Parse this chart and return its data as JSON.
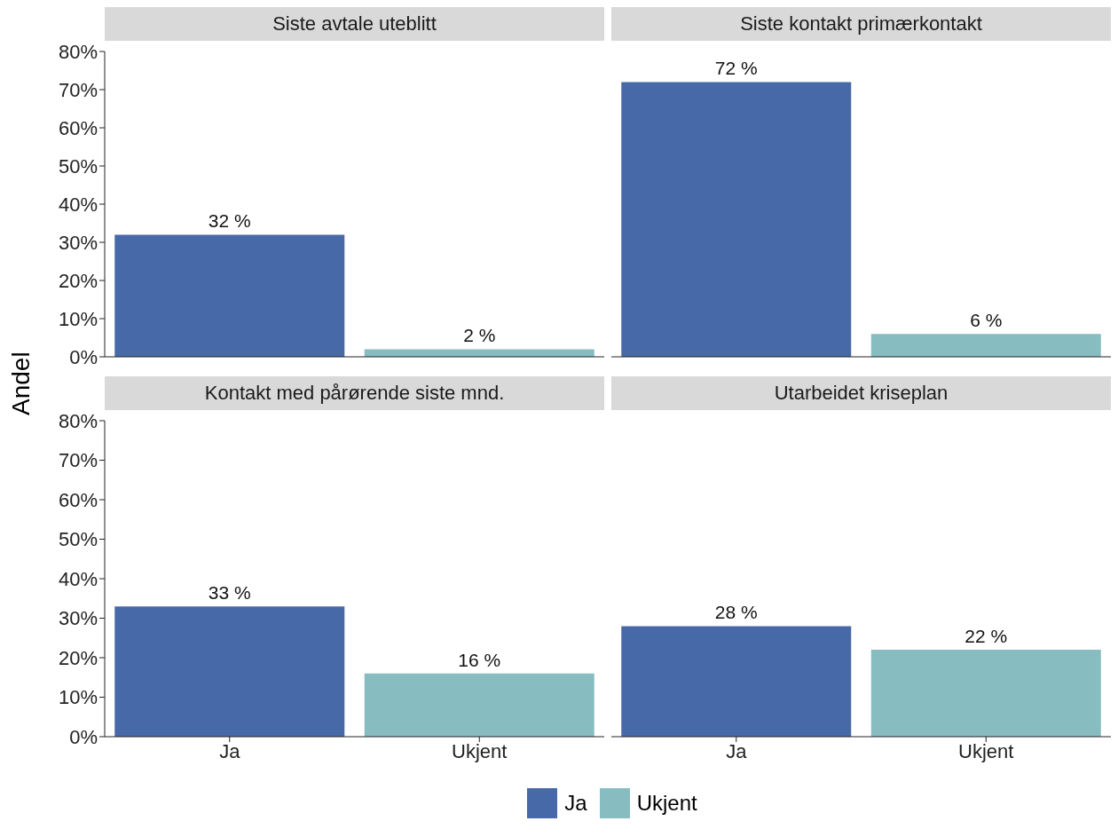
{
  "chart_data": [
    {
      "type": "bar",
      "stacked": true,
      "title": "Siste avtale uteblitt",
      "ylabel": "Andel",
      "categories": [
        "Ja",
        "Ukjent"
      ],
      "series": [
        {
          "name": "Ja",
          "color": "#4869a8",
          "values": [
            32,
            null
          ],
          "value_labels": [
            "32 %",
            null
          ]
        },
        {
          "name": "Ukjent",
          "color": "#87bcc1",
          "values": [
            null,
            2
          ],
          "value_labels": [
            null,
            "2 %"
          ]
        }
      ],
      "ylim": [
        0,
        80
      ],
      "yticks": [
        {
          "value": 0,
          "label": "0%"
        },
        {
          "value": 10,
          "label": "10%"
        },
        {
          "value": 20,
          "label": "20%"
        },
        {
          "value": 30,
          "label": "30%"
        },
        {
          "value": 40,
          "label": "40%"
        },
        {
          "value": 50,
          "label": "50%"
        },
        {
          "value": 60,
          "label": "60%"
        },
        {
          "value": 70,
          "label": "70%"
        },
        {
          "value": 80,
          "label": "80%"
        }
      ],
      "tick_labels": "y",
      "grid": false,
      "legend": "bottom"
    },
    {
      "type": "bar",
      "stacked": true,
      "title": "Siste kontakt primærkontakt",
      "categories": [
        "Ja",
        "Ukjent"
      ],
      "series": [
        {
          "name": "Ja",
          "color": "#4869a8",
          "values": [
            72,
            null
          ],
          "value_labels": [
            "72 %",
            null
          ]
        },
        {
          "name": "Ukjent",
          "color": "#87bcc1",
          "values": [
            null,
            6
          ],
          "value_labels": [
            null,
            "6 %"
          ]
        }
      ],
      "ylim": [
        0,
        80
      ],
      "yticks": [
        {
          "value": 0,
          "label": "0%"
        },
        {
          "value": 10,
          "label": "10%"
        },
        {
          "value": 20,
          "label": "20%"
        },
        {
          "value": 30,
          "label": "30%"
        },
        {
          "value": 40,
          "label": "40%"
        },
        {
          "value": 50,
          "label": "50%"
        },
        {
          "value": 60,
          "label": "60%"
        },
        {
          "value": 70,
          "label": "70%"
        },
        {
          "value": 80,
          "label": "80%"
        }
      ],
      "tick_labels": false,
      "grid": false
    },
    {
      "type": "bar",
      "stacked": true,
      "title": "Kontakt med pårørende siste mnd.",
      "categories": [
        "Ja",
        "Ukjent"
      ],
      "series": [
        {
          "name": "Ja",
          "color": "#4869a8",
          "values": [
            33,
            null
          ],
          "value_labels": [
            "33 %",
            null
          ]
        },
        {
          "name": "Ukjent",
          "color": "#87bcc1",
          "values": [
            null,
            16
          ],
          "value_labels": [
            null,
            "16 %"
          ]
        }
      ],
      "ylim": [
        0,
        80
      ],
      "yticks": [
        {
          "value": 0,
          "label": "0%"
        },
        {
          "value": 10,
          "label": "10%"
        },
        {
          "value": 20,
          "label": "20%"
        },
        {
          "value": 30,
          "label": "30%"
        },
        {
          "value": 40,
          "label": "40%"
        },
        {
          "value": 50,
          "label": "50%"
        },
        {
          "value": 60,
          "label": "60%"
        },
        {
          "value": 70,
          "label": "70%"
        },
        {
          "value": 80,
          "label": "80%"
        }
      ],
      "grid": false
    },
    {
      "type": "bar",
      "stacked": true,
      "title": "Utarbeidet kriseplan",
      "categories": [
        "Ja",
        "Ukjent"
      ],
      "series": [
        {
          "name": "Ja",
          "color": "#4869a8",
          "values": [
            28,
            null
          ],
          "value_labels": [
            "28 %",
            null
          ]
        },
        {
          "name": "Ukjent",
          "color": "#87bcc1",
          "values": [
            null,
            22
          ],
          "value_labels": [
            null,
            "22 %"
          ]
        }
      ],
      "ylim": [
        0,
        80
      ],
      "yticks": [
        {
          "value": 0,
          "label": "0%"
        },
        {
          "value": 10,
          "label": "10%"
        },
        {
          "value": 20,
          "label": "20%"
        },
        {
          "value": 30,
          "label": "30%"
        },
        {
          "value": 40,
          "label": "40%"
        },
        {
          "value": 50,
          "label": "50%"
        },
        {
          "value": 60,
          "label": "60%"
        },
        {
          "value": 70,
          "label": "70%"
        },
        {
          "value": 80,
          "label": "80%"
        }
      ],
      "tick_labels": "x",
      "grid": false
    }
  ]
}
